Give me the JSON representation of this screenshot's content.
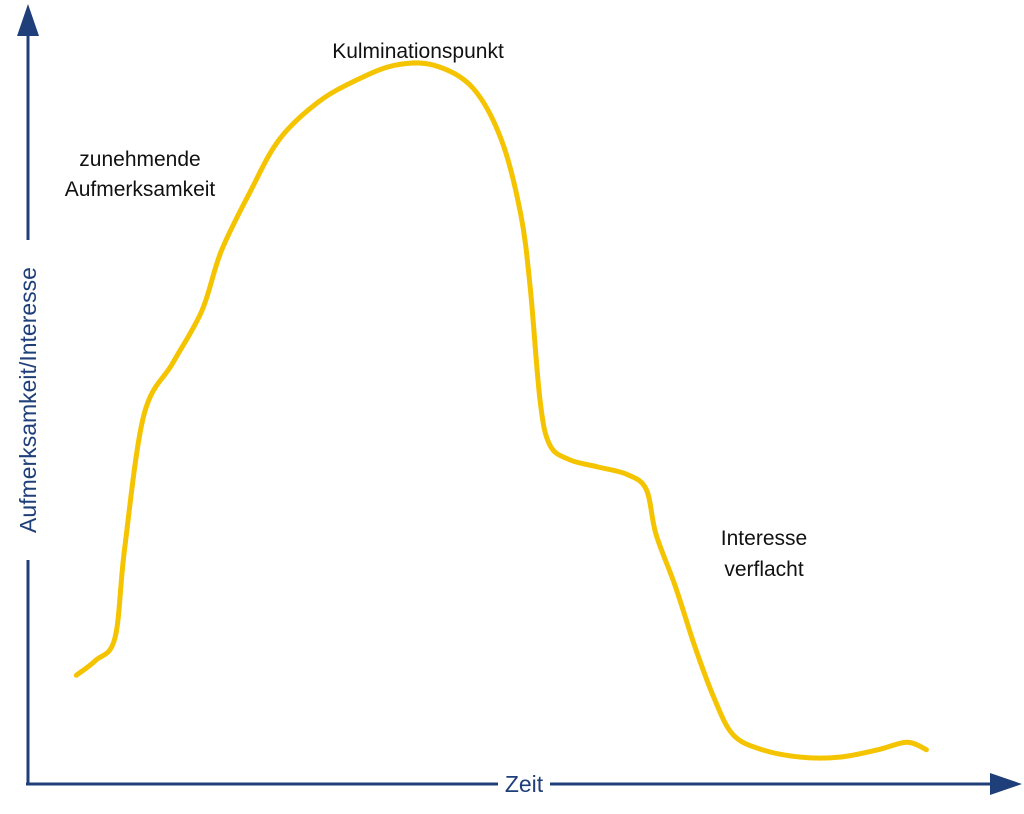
{
  "chart_data": {
    "type": "line",
    "title": "",
    "xlabel": "Zeit",
    "ylabel": "Aufmerksamkeit/Interesse",
    "grid": false,
    "legend": "none",
    "xlim": [
      0,
      100
    ],
    "ylim": [
      0,
      100
    ],
    "series": [
      {
        "color": "#f5c400",
        "points": [
          [
            5,
            13
          ],
          [
            7,
            15
          ],
          [
            9,
            18
          ],
          [
            10,
            30
          ],
          [
            12,
            48
          ],
          [
            15,
            55
          ],
          [
            18,
            62
          ],
          [
            20,
            70
          ],
          [
            23,
            78
          ],
          [
            26,
            85
          ],
          [
            30,
            90
          ],
          [
            34,
            93
          ],
          [
            38,
            95
          ],
          [
            42,
            95
          ],
          [
            46,
            92
          ],
          [
            49,
            85
          ],
          [
            51,
            75
          ],
          [
            52,
            65
          ],
          [
            53,
            50
          ],
          [
            54,
            44
          ],
          [
            56,
            42
          ],
          [
            59,
            41
          ],
          [
            62,
            40
          ],
          [
            64,
            38
          ],
          [
            65,
            32
          ],
          [
            67,
            25
          ],
          [
            69,
            17
          ],
          [
            71,
            10
          ],
          [
            73,
            5
          ],
          [
            76,
            3
          ],
          [
            80,
            2
          ],
          [
            84,
            2
          ],
          [
            88,
            3
          ],
          [
            91,
            4
          ],
          [
            93,
            3
          ]
        ]
      }
    ],
    "annotations": [
      {
        "id": "rising",
        "lines": [
          "zunehmende",
          "Aufmerksamkeit"
        ]
      },
      {
        "id": "peak",
        "lines": [
          "Kulminationspunkt"
        ]
      },
      {
        "id": "falling",
        "lines": [
          "Interesse",
          "verflacht"
        ]
      }
    ]
  }
}
